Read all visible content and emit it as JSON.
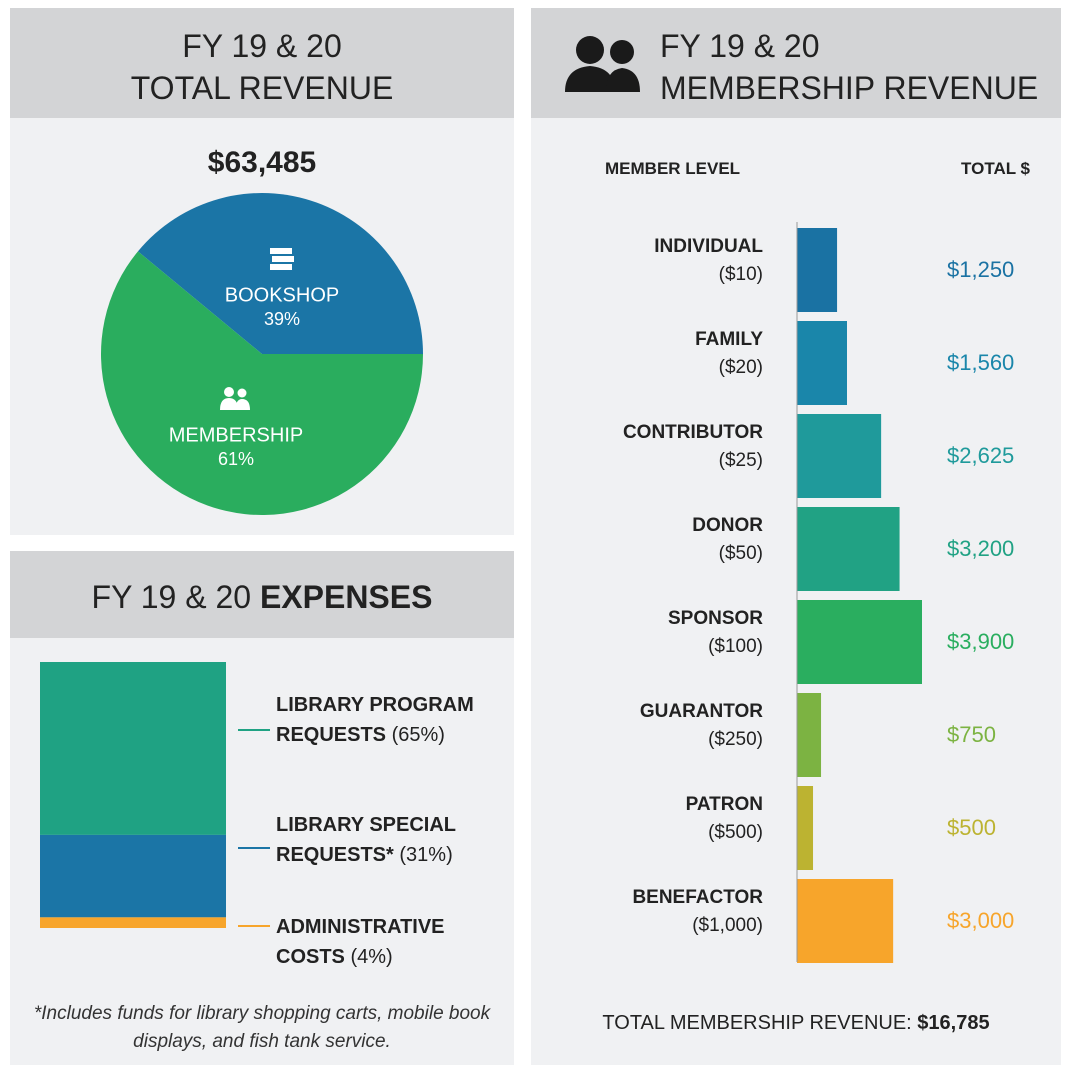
{
  "chart_data": [
    {
      "type": "pie",
      "title": "FY 19 & 20",
      "title_emphasis": "TOTAL REVENUE",
      "subtitle": "$63,485",
      "categories": [
        "BOOKSHOP",
        "MEMBERSHIP"
      ],
      "values": [
        39,
        61
      ],
      "value_labels": [
        "39%",
        "61%"
      ],
      "colors": [
        "#1b75a6",
        "#2aad5e"
      ]
    },
    {
      "type": "stacked_bar",
      "title": "FY 19 & 20",
      "title_emphasis": "EXPENSES",
      "series": [
        {
          "name": "LIBRARY PROGRAM REQUESTS",
          "color": "#1fa283",
          "values": [
            65
          ],
          "value_labels": [
            "(65%)"
          ]
        },
        {
          "name": "LIBRARY SPECIAL REQUESTS*",
          "color": "#1b75a6",
          "values": [
            31
          ],
          "value_labels": [
            "(31%)"
          ]
        },
        {
          "name": "ADMINISTRATIVE COSTS",
          "color": "#f7a52b",
          "values": [
            4
          ],
          "value_labels": [
            "(4%)"
          ]
        }
      ],
      "footnote": "*Includes funds for library shopping carts, mobile book displays, and fish tank service."
    },
    {
      "type": "hbar",
      "title": "FY 19 & 20",
      "title_emphasis": "MEMBERSHIP REVENUE",
      "category_heading": "MEMBER LEVEL",
      "value_heading": "TOTAL $",
      "categories": [
        "INDIVIDUAL",
        "FAMILY",
        "CONTRIBUTOR",
        "DONOR",
        "SPONSOR",
        "GUARANTOR",
        "PATRON",
        "BENEFACTOR"
      ],
      "sublabels": [
        "($10)",
        "($20)",
        "($25)",
        "($50)",
        "($100)",
        "($250)",
        "($500)",
        "($1,000)"
      ],
      "values": [
        1250,
        1560,
        2625,
        3200,
        3900,
        750,
        500,
        3000
      ],
      "value_labels": [
        "$1,250",
        "$1,560",
        "$2,625",
        "$3,200",
        "$3,900",
        "$750",
        "$500",
        "$3,000"
      ],
      "colors": [
        "#1a72a3",
        "#1a86aa",
        "#1f9a9b",
        "#21a284",
        "#2aae5f",
        "#7cb342",
        "#bcb331",
        "#f7a52b"
      ],
      "total_label": "TOTAL MEMBERSHIP REVENUE:",
      "total": "$16,785"
    }
  ]
}
